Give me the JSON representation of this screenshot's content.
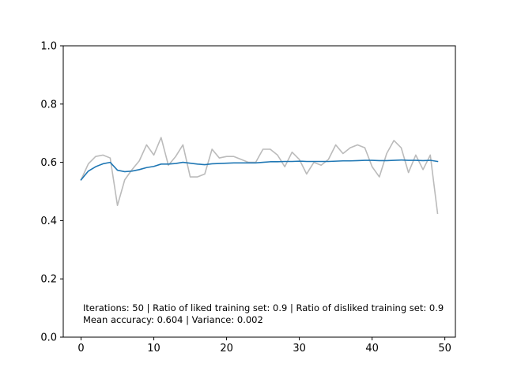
{
  "chart_data": {
    "type": "line",
    "xlim": [
      -2.45,
      51.45
    ],
    "ylim": [
      0.0,
      1.0
    ],
    "x_ticks": [
      0,
      10,
      20,
      30,
      40,
      50
    ],
    "x_tick_labels": [
      "0",
      "10",
      "20",
      "30",
      "40",
      "50"
    ],
    "y_ticks": [
      0.0,
      0.2,
      0.4,
      0.6,
      0.8,
      1.0
    ],
    "y_tick_labels": [
      "0.0",
      "0.2",
      "0.4",
      "0.6",
      "0.8",
      "1.0"
    ],
    "grid": false,
    "series": [
      {
        "color": "#bbbbbb",
        "x": [
          0,
          1,
          2,
          3,
          4,
          5,
          6,
          7,
          8,
          9,
          10,
          11,
          12,
          13,
          14,
          15,
          16,
          17,
          18,
          19,
          20,
          21,
          22,
          23,
          24,
          25,
          26,
          27,
          28,
          29,
          30,
          31,
          32,
          33,
          34,
          35,
          36,
          37,
          38,
          39,
          40,
          41,
          42,
          43,
          44,
          45,
          46,
          47,
          48,
          49
        ],
        "values": [
          0.54,
          0.595,
          0.62,
          0.625,
          0.615,
          0.452,
          0.54,
          0.575,
          0.605,
          0.66,
          0.625,
          0.685,
          0.59,
          0.62,
          0.66,
          0.55,
          0.55,
          0.56,
          0.645,
          0.615,
          0.62,
          0.62,
          0.61,
          0.6,
          0.6,
          0.645,
          0.645,
          0.625,
          0.585,
          0.635,
          0.61,
          0.56,
          0.6,
          0.59,
          0.61,
          0.66,
          0.63,
          0.65,
          0.66,
          0.65,
          0.585,
          0.55,
          0.63,
          0.675,
          0.65,
          0.565,
          0.625,
          0.575,
          0.625,
          0.425
        ]
      },
      {
        "color": "#1f77b4",
        "x": [
          0,
          1,
          2,
          3,
          4,
          5,
          6,
          7,
          8,
          9,
          10,
          11,
          12,
          13,
          14,
          15,
          16,
          17,
          18,
          19,
          20,
          21,
          22,
          23,
          24,
          25,
          26,
          27,
          28,
          29,
          30,
          31,
          32,
          33,
          34,
          35,
          36,
          37,
          38,
          39,
          40,
          41,
          42,
          43,
          44,
          45,
          46,
          47,
          48,
          49
        ],
        "values": [
          0.54,
          0.57,
          0.585,
          0.595,
          0.6,
          0.573,
          0.568,
          0.57,
          0.575,
          0.582,
          0.586,
          0.594,
          0.594,
          0.596,
          0.6,
          0.597,
          0.594,
          0.592,
          0.595,
          0.596,
          0.597,
          0.598,
          0.598,
          0.598,
          0.598,
          0.6,
          0.602,
          0.602,
          0.603,
          0.603,
          0.604,
          0.603,
          0.603,
          0.603,
          0.603,
          0.604,
          0.605,
          0.605,
          0.606,
          0.607,
          0.607,
          0.606,
          0.606,
          0.607,
          0.608,
          0.607,
          0.607,
          0.606,
          0.607,
          0.603
        ]
      }
    ],
    "annotations": [
      "Iterations: 50 | Ratio of liked training set: 0.9 | Ratio of disliked training set: 0.9",
      "Mean accuracy: 0.604 | Variance: 0.002"
    ]
  }
}
